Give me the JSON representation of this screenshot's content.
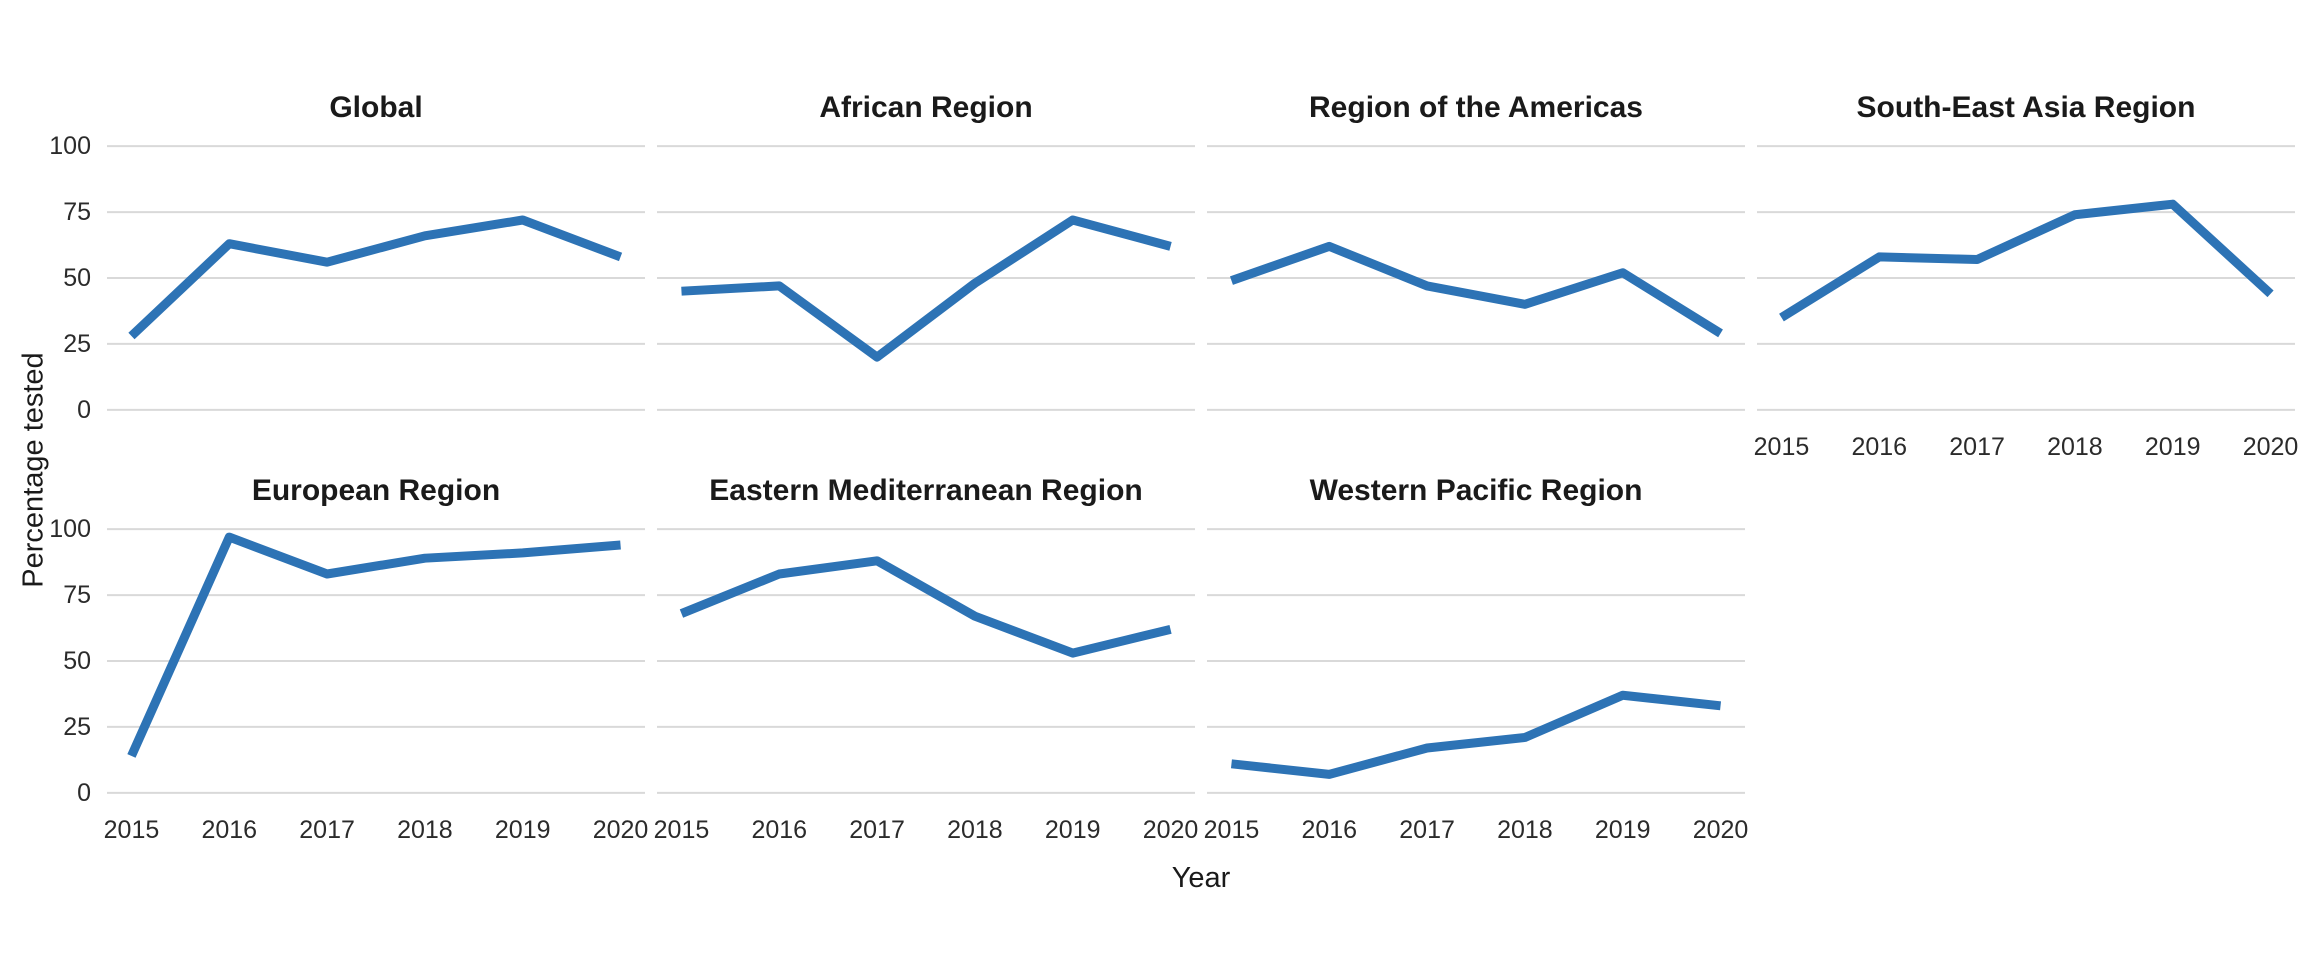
{
  "figure": {
    "y_axis_title": "Percentage tested",
    "x_axis_title": "Year",
    "y_ticks": [
      100,
      75,
      50,
      25,
      0
    ],
    "x_ticks": [
      "2015",
      "2016",
      "2017",
      "2018",
      "2019",
      "2020"
    ],
    "line_color": "#2d73b5",
    "grid_color": "#d9d9d9",
    "background_color": "#ffffff"
  },
  "chart_data": {
    "type": "line",
    "x": [
      2015,
      2016,
      2017,
      2018,
      2019,
      2020
    ],
    "xlabel": "Year",
    "ylabel": "Percentage tested",
    "ylim": [
      0,
      100
    ],
    "grid": "horizontal-only",
    "legend": "none",
    "panels": [
      {
        "title": "Global",
        "values": [
          28,
          63,
          56,
          66,
          72,
          58
        ]
      },
      {
        "title": "African Region",
        "values": [
          45,
          47,
          20,
          48,
          72,
          62
        ]
      },
      {
        "title": "Region of the Americas",
        "values": [
          49,
          62,
          47,
          40,
          52,
          29
        ]
      },
      {
        "title": "South-East Asia Region",
        "values": [
          35,
          58,
          57,
          74,
          78,
          44
        ]
      },
      {
        "title": "European Region",
        "values": [
          14,
          97,
          83,
          89,
          91,
          94
        ]
      },
      {
        "title": "Eastern Mediterranean Region",
        "values": [
          68,
          83,
          88,
          67,
          53,
          62
        ]
      },
      {
        "title": "Western Pacific Region",
        "values": [
          11,
          7,
          17,
          21,
          37,
          33
        ]
      }
    ]
  }
}
